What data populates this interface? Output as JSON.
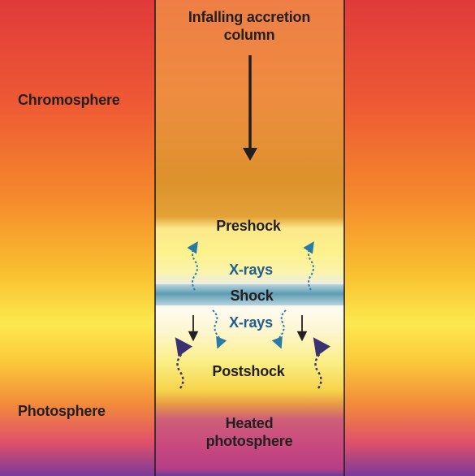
{
  "labels": {
    "column": "Infalling accretion column",
    "column_line1": "Infalling accretion",
    "column_line2": "column",
    "chromosphere": "Chromosphere",
    "preshock": "Preshock",
    "xrays_upper": "X-rays",
    "shock": "Shock",
    "xrays_lower": "X-rays",
    "postshock": "Postshock",
    "photosphere": "Photosphere",
    "heated_photosphere": "Heated photosphere",
    "heated_line1": "Heated",
    "heated_line2": "photosphere"
  },
  "colors": {
    "outer_top": "#e03a3a",
    "outer_mid": "#f5a02a",
    "outer_yellow": "#fce94f",
    "outer_bottom": "#7b3a9a",
    "column_top": "#ee8444",
    "column_amber": "#d9902a",
    "preshock_yellow": "#fbf08a",
    "shock_band": "#5f9fb5",
    "postshock_yellow": "#f7d84a",
    "heated_magenta": "#c8477f",
    "xray_arrow": "#2a7aa8",
    "uv_arrow": "#3a3270",
    "text_dark": "#231f20",
    "text_blue": "#1f5f8f"
  }
}
